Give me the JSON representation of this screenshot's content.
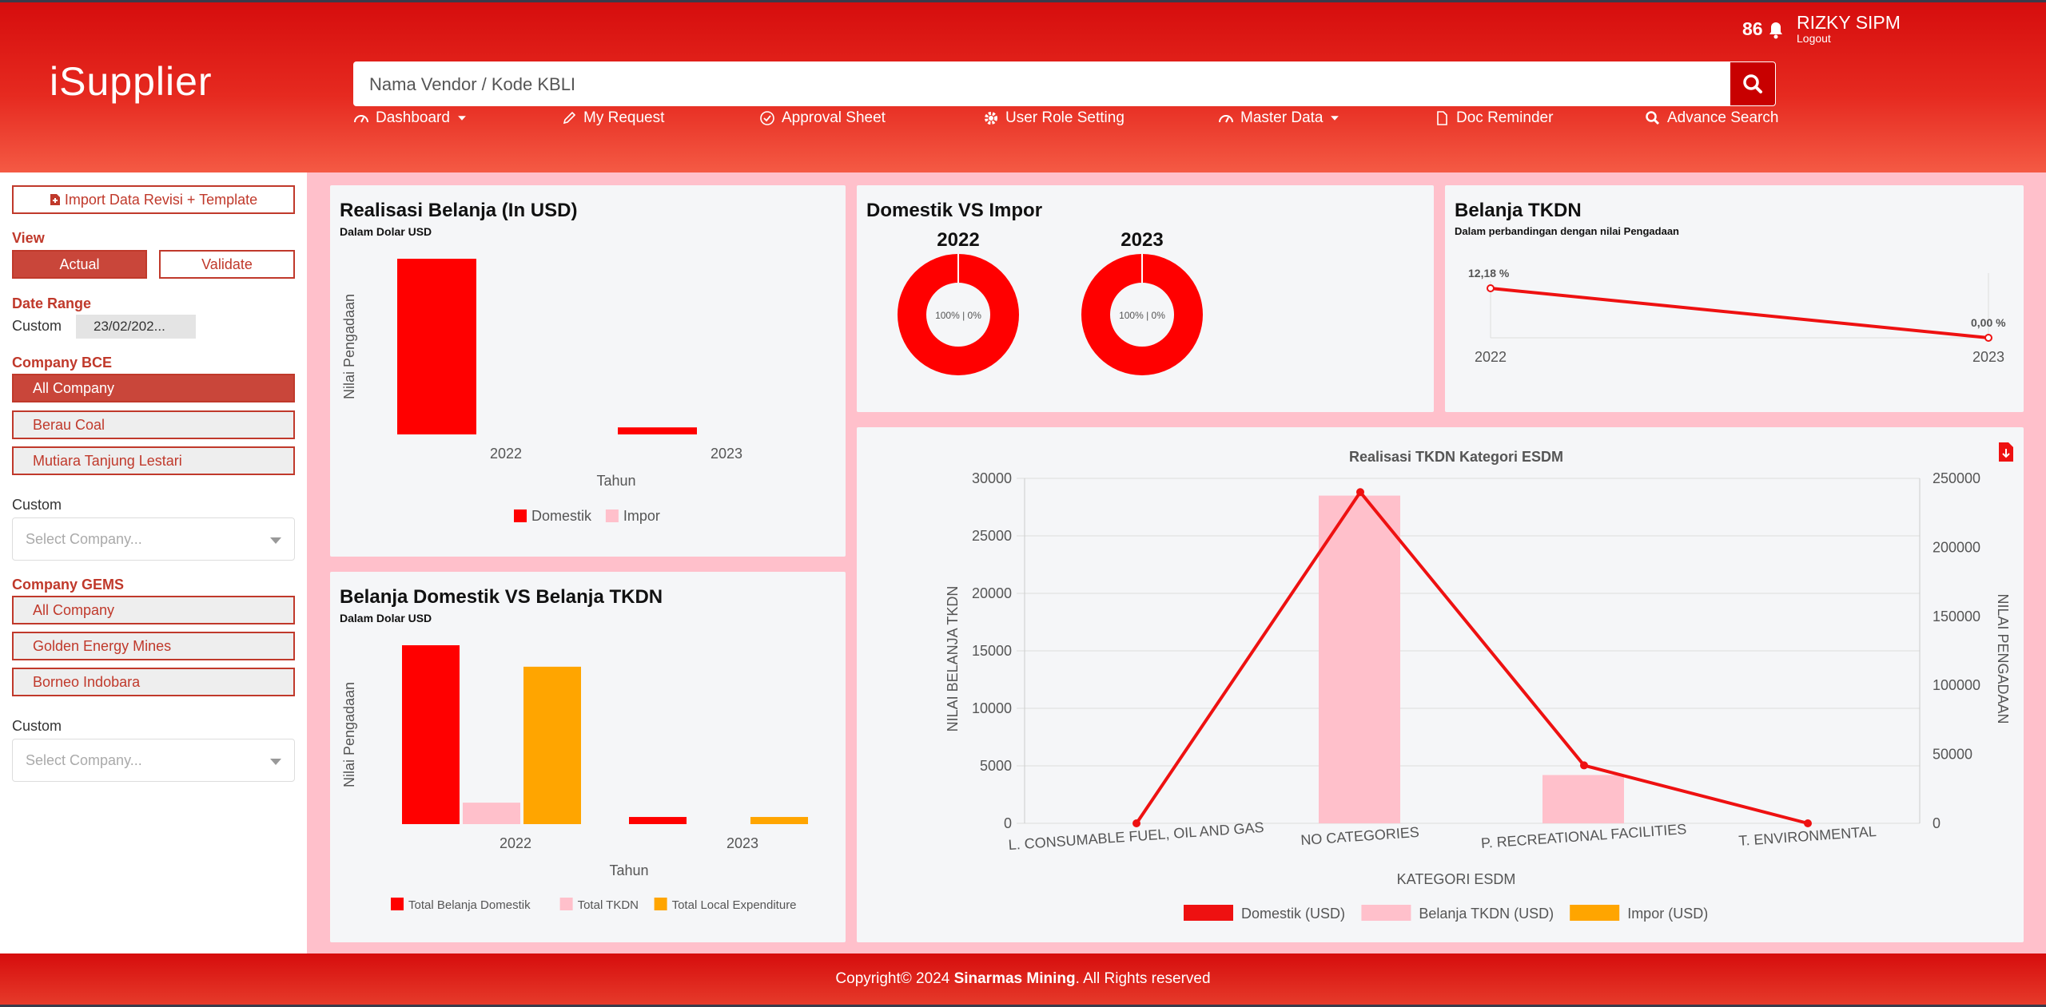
{
  "header": {
    "logo": "iSupplier",
    "search_placeholder": "Nama Vendor / Kode KBLI",
    "notification_count": "86",
    "user_name": "RIZKY SIPM",
    "logout_label": "Logout",
    "nav": [
      {
        "label": "Dashboard",
        "icon": "gauge-icon"
      },
      {
        "label": "My Request",
        "icon": "pencil-icon"
      },
      {
        "label": "Approval Sheet",
        "icon": "check-circle-icon"
      },
      {
        "label": "User Role Setting",
        "icon": "gear-icon"
      },
      {
        "label": "Master Data",
        "icon": "gauge-icon"
      },
      {
        "label": "Doc Reminder",
        "icon": "document-icon"
      },
      {
        "label": "Advance Search",
        "icon": "search-icon"
      }
    ]
  },
  "sidebar": {
    "import_label": "Import Data Revisi + Template",
    "view_heading": "View",
    "view_actual": "Actual",
    "view_validate": "Validate",
    "date_heading": "Date Range",
    "date_custom_label": "Custom",
    "date_value": "23/02/202...",
    "bce_heading": "Company BCE",
    "bce_items": [
      "All Company",
      "Berau Coal",
      "Mutiara Tanjung Lestari"
    ],
    "bce_custom_label": "Custom",
    "bce_select_placeholder": "Select Company...",
    "gems_heading": "Company GEMS",
    "gems_items": [
      "All Company",
      "Golden Energy Mines",
      "Borneo Indobara"
    ],
    "gems_custom_label": "Custom",
    "gems_select_placeholder": "Select Company..."
  },
  "cards": {
    "realisasi": {
      "title": "Realisasi Belanja (In USD)",
      "subtitle": "Dalam Dolar USD"
    },
    "domestik_impor": {
      "title": "Domestik VS Impor"
    },
    "tkdn": {
      "title": "Belanja TKDN",
      "subtitle": "Dalam perbandingan dengan nilai Pengadaan"
    },
    "dom_vs_tkdn": {
      "title": "Belanja Domestik VS Belanja TKDN",
      "subtitle": "Dalam Dolar USD"
    },
    "esdm": {
      "title": "Realisasi TKDN Kategori ESDM"
    }
  },
  "chart_data": [
    {
      "id": "realisasi",
      "type": "bar",
      "categories": [
        "2022",
        "2023"
      ],
      "series": [
        {
          "name": "Domestik",
          "color": "#ff0000",
          "values": [
            100,
            4
          ]
        },
        {
          "name": "Impor",
          "color": "#ffc0cb",
          "values": [
            0,
            0
          ]
        }
      ],
      "xlabel": "Tahun",
      "ylabel": "Nilai Pengadaan"
    },
    {
      "id": "domestik_impor",
      "type": "pie",
      "charts": [
        {
          "title": "2022",
          "label": "100% | 0%",
          "slices": [
            {
              "name": "Domestik",
              "value": 100,
              "color": "#ff0000"
            },
            {
              "name": "Impor",
              "value": 0,
              "color": "#ffc0cb"
            }
          ]
        },
        {
          "title": "2023",
          "label": "100% | 0%",
          "slices": [
            {
              "name": "Domestik",
              "value": 100,
              "color": "#ff0000"
            },
            {
              "name": "Impor",
              "value": 0,
              "color": "#ffc0cb"
            }
          ]
        }
      ]
    },
    {
      "id": "tkdn",
      "type": "line",
      "x": [
        "2022",
        "2023"
      ],
      "values": [
        12.18,
        0
      ],
      "value_labels": [
        "12,18 %",
        "0,00 %"
      ],
      "color": "#ee1111"
    },
    {
      "id": "dom_vs_tkdn",
      "type": "bar",
      "categories": [
        "2022",
        "2023"
      ],
      "series": [
        {
          "name": "Total Belanja Domestik",
          "color": "#ff0000",
          "values": [
            100,
            4
          ]
        },
        {
          "name": "Total TKDN",
          "color": "#ffc0cb",
          "values": [
            12,
            0
          ]
        },
        {
          "name": "Total Local Expenditure",
          "color": "#ffa500",
          "values": [
            88,
            4
          ]
        }
      ],
      "xlabel": "Tahun",
      "ylabel": "Nilai Pengadaan"
    },
    {
      "id": "esdm",
      "type": "bar",
      "title": "Realisasi TKDN Kategori ESDM",
      "categories": [
        "L. CONSUMABLE FUEL, OIL AND GAS",
        "NO CATEGORIES",
        "P. RECREATIONAL FACILITIES",
        "T. ENVIRONMENTAL"
      ],
      "xlabel": "KATEGORI ESDM",
      "ylabel": "NILAI BELANJA TKDN",
      "ylabel_right": "NILAI PENGADAAN",
      "ylim": [
        0,
        30000
      ],
      "ylim_right": [
        0,
        250000
      ],
      "yticks": [
        "0",
        "5000",
        "10000",
        "15000",
        "20000",
        "25000",
        "30000"
      ],
      "yticks_right": [
        "0",
        "50000",
        "100000",
        "150000",
        "200000",
        "250000"
      ],
      "series": [
        {
          "name": "Domestik (USD)",
          "type": "line",
          "axis": "right",
          "color": "#ee1111",
          "values": [
            0,
            240000,
            42000,
            0
          ]
        },
        {
          "name": "Belanja TKDN (USD)",
          "type": "bar",
          "axis": "left",
          "color": "#ffc0cb",
          "values": [
            0,
            28500,
            4200,
            0
          ]
        },
        {
          "name": "Impor (USD)",
          "type": "bar",
          "axis": "left",
          "color": "#ffa500",
          "values": [
            0,
            0,
            0,
            0
          ]
        }
      ]
    }
  ],
  "footer": {
    "prefix": "Copyright© 2024 ",
    "brand": "Sinarmas Mining",
    "suffix": ". All Rights reserved"
  }
}
